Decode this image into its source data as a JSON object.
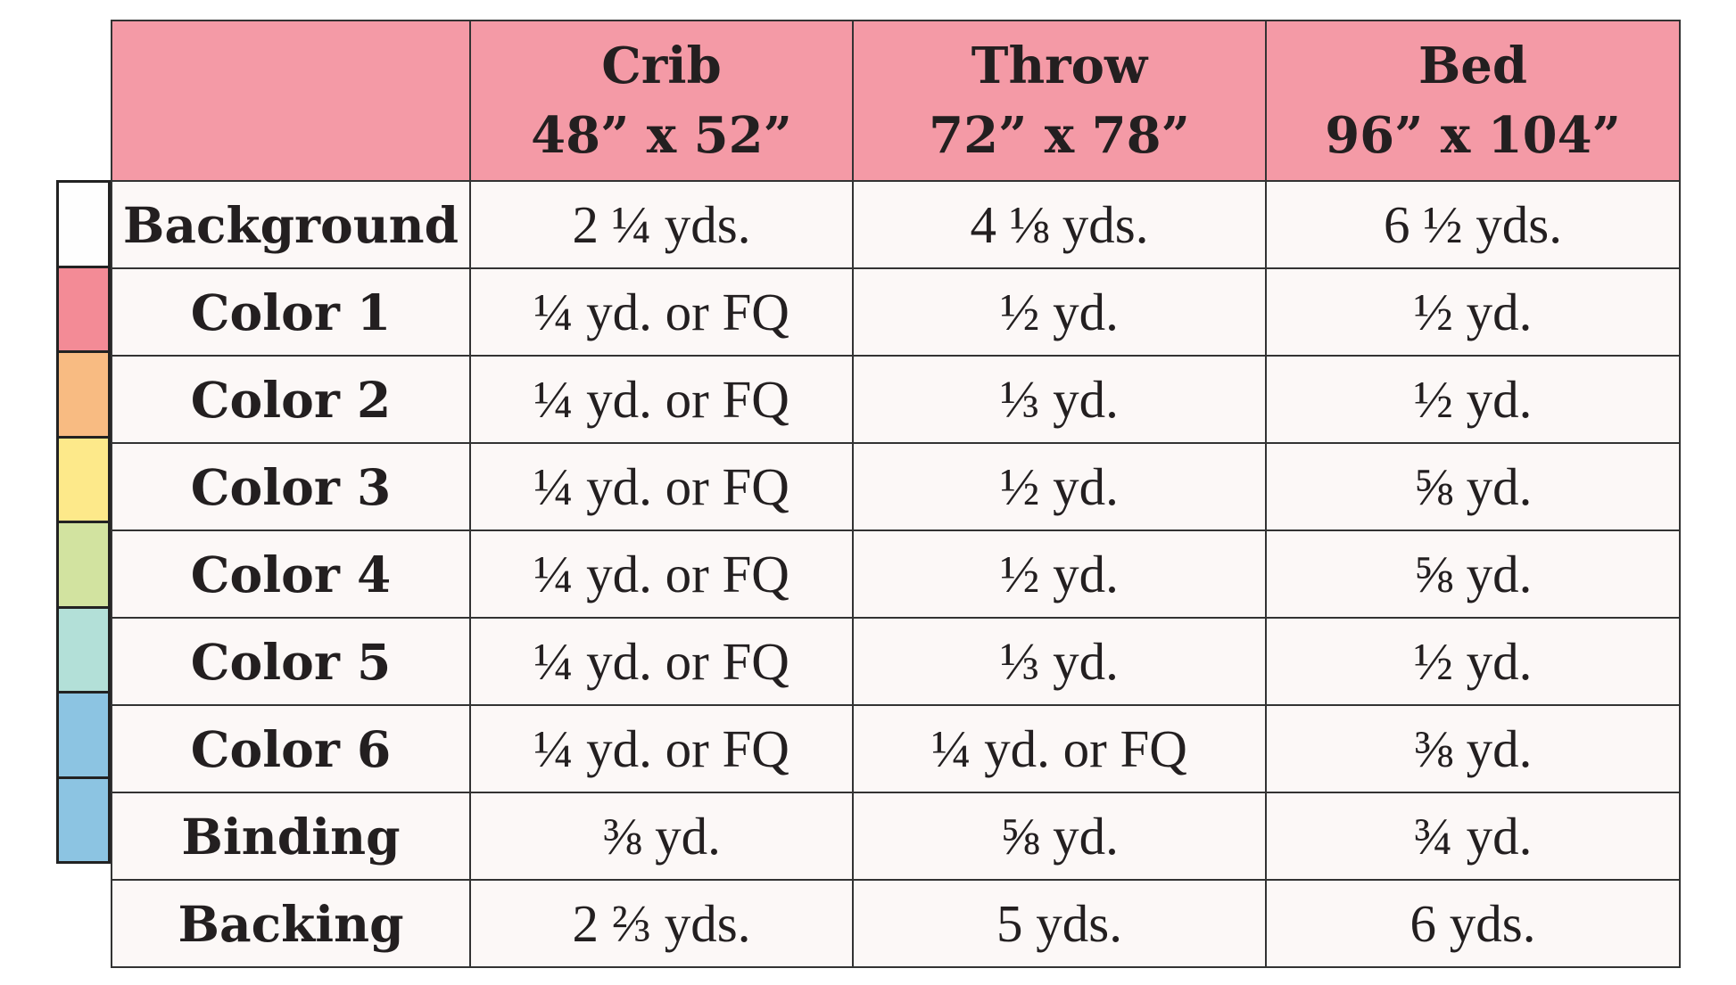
{
  "table": {
    "header": {
      "corner": "",
      "columns": [
        {
          "name": "Crib",
          "size": "48” x 52”"
        },
        {
          "name": "Throw",
          "size": "72” x 78”"
        },
        {
          "name": "Bed",
          "size": "96” x 104”"
        }
      ]
    },
    "rows": [
      {
        "label": "Background",
        "values": [
          "2 ¼ yds.",
          "4 ⅛ yds.",
          "6 ½ yds."
        ]
      },
      {
        "label": "Color 1",
        "values": [
          "¼ yd. or FQ",
          "½ yd.",
          "½ yd."
        ]
      },
      {
        "label": "Color 2",
        "values": [
          "¼ yd. or FQ",
          "⅓ yd.",
          "½ yd."
        ]
      },
      {
        "label": "Color 3",
        "values": [
          "¼ yd. or FQ",
          "½ yd.",
          "⅝ yd."
        ]
      },
      {
        "label": "Color 4",
        "values": [
          "¼ yd. or FQ",
          "½ yd.",
          "⅝ yd."
        ]
      },
      {
        "label": "Color 5",
        "values": [
          "¼ yd. or FQ",
          "⅓ yd.",
          "½ yd."
        ]
      },
      {
        "label": "Color 6",
        "values": [
          "¼ yd. or FQ",
          "¼ yd. or FQ",
          "⅜ yd."
        ]
      },
      {
        "label": "Binding",
        "values": [
          "⅜ yd.",
          "⅝ yd.",
          "¾ yd."
        ]
      },
      {
        "label": "Backing",
        "values": [
          "2 ⅔ yds.",
          "5 yds.",
          "6 yds."
        ]
      }
    ]
  },
  "swatches": [
    {
      "row": "Background",
      "color": "#fefefe"
    },
    {
      "row": "Color 1",
      "color": "#f38b96"
    },
    {
      "row": "Color 2",
      "color": "#f8bb82"
    },
    {
      "row": "Color 3",
      "color": "#fde98a"
    },
    {
      "row": "Color 4",
      "color": "#d2e3a0"
    },
    {
      "row": "Color 5",
      "color": "#b3e0d8"
    },
    {
      "row": "Color 6",
      "color": "#8cc4e2"
    },
    {
      "row": "Binding",
      "color": "#8cc4e2"
    }
  ],
  "colors": {
    "header_bg": "#f49aa6",
    "cell_bg": "#fcf8f7",
    "border": "#333333",
    "text": "#231f20"
  }
}
